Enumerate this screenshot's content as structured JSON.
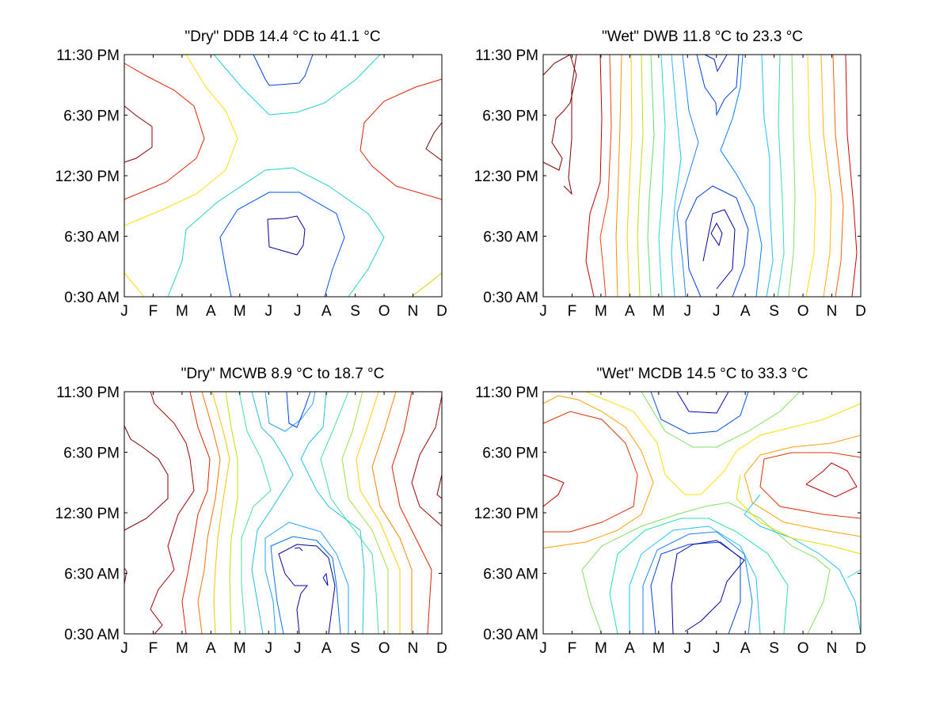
{
  "chart_data": [
    {
      "type": "contour",
      "title": "\"Dry\" DDB  14.4 °C to  41.1 °C",
      "x_ticks": [
        "J",
        "F",
        "M",
        "A",
        "M",
        "J",
        "J",
        "A",
        "S",
        "O",
        "N",
        "D"
      ],
      "y_ticks": [
        "0:30 AM",
        "6:30 AM",
        "12:30 PM",
        "6:30 PM",
        "11:30 PM"
      ],
      "range_min_c": 14.4,
      "range_max_c": 41.1,
      "colormap": "jet (blue = low, red = high)",
      "grid": false
    },
    {
      "type": "contour",
      "title": "\"Wet\" DWB  11.8 °C to  23.3 °C",
      "x_ticks": [
        "J",
        "F",
        "M",
        "A",
        "M",
        "J",
        "J",
        "A",
        "S",
        "O",
        "N",
        "D"
      ],
      "y_ticks": [
        "0:30 AM",
        "6:30 AM",
        "12:30 PM",
        "6:30 PM",
        "11:30 PM"
      ],
      "range_min_c": 11.8,
      "range_max_c": 23.3,
      "colormap": "jet (blue = low, red = high)",
      "grid": false
    },
    {
      "type": "contour",
      "title": "\"Dry\" MCWB   8.9 °C to  18.7 °C",
      "x_ticks": [
        "J",
        "F",
        "M",
        "A",
        "M",
        "J",
        "J",
        "A",
        "S",
        "O",
        "N",
        "D"
      ],
      "y_ticks": [
        "0:30 AM",
        "6:30 AM",
        "12:30 PM",
        "6:30 PM",
        "11:30 PM"
      ],
      "range_min_c": 8.9,
      "range_max_c": 18.7,
      "colormap": "jet (blue = low, red = high)",
      "grid": false
    },
    {
      "type": "contour",
      "title": "\"Wet\" MCDB  14.5 °C to  33.3 °C",
      "x_ticks": [
        "J",
        "F",
        "M",
        "A",
        "M",
        "J",
        "J",
        "A",
        "S",
        "O",
        "N",
        "D"
      ],
      "y_ticks": [
        "0:30 AM",
        "6:30 AM",
        "12:30 PM",
        "6:30 PM",
        "11:30 PM"
      ],
      "range_min_c": 14.5,
      "range_max_c": 33.3,
      "colormap": "jet (blue = low, red = high)",
      "grid": false
    }
  ]
}
